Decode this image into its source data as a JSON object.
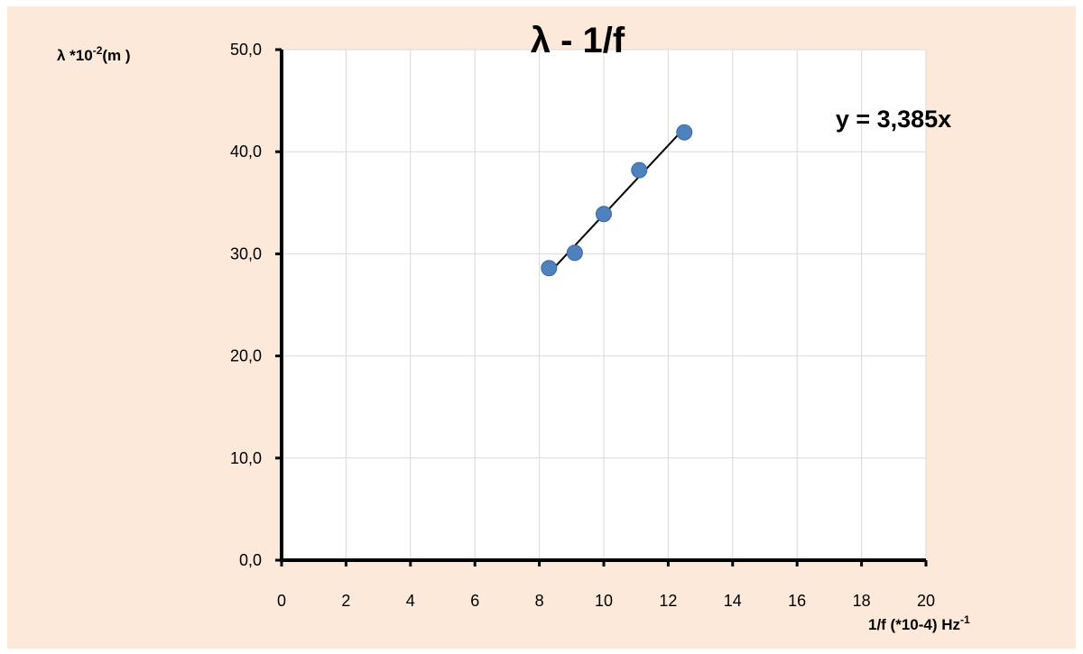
{
  "chart_data": {
    "type": "scatter",
    "title": "λ - 1/f",
    "xlabel": {
      "main": "1/f (*10-4)  Hz",
      "sup": "-1"
    },
    "ylabel": {
      "pre": "λ  *10",
      "sup": "-2",
      "post": "(m )"
    },
    "xlim": [
      0,
      20
    ],
    "ylim": [
      0,
      50
    ],
    "x_ticks": [
      0,
      2,
      4,
      6,
      8,
      10,
      12,
      14,
      16,
      18,
      20
    ],
    "x_tick_labels": [
      "0",
      "2",
      "4",
      "6",
      "8",
      "10",
      "12",
      "14",
      "16",
      "18",
      "20"
    ],
    "y_ticks": [
      0,
      10,
      20,
      30,
      40,
      50
    ],
    "y_tick_labels": [
      "0,0",
      "10,0",
      "20,0",
      "30,0",
      "40,0",
      "50,0"
    ],
    "grid": true,
    "series": [
      {
        "x": [
          8.3,
          9.1,
          10.0,
          11.1,
          12.5
        ],
        "y": [
          28.6,
          30.1,
          33.9,
          38.2,
          41.9
        ],
        "marker_color": "#4f81bd"
      }
    ],
    "trendline": {
      "slope": 3.385,
      "x_range": [
        8.3,
        12.5
      ],
      "equation": "y = 3,385x",
      "color": "#000000"
    },
    "background_color": "#fde9d9"
  }
}
